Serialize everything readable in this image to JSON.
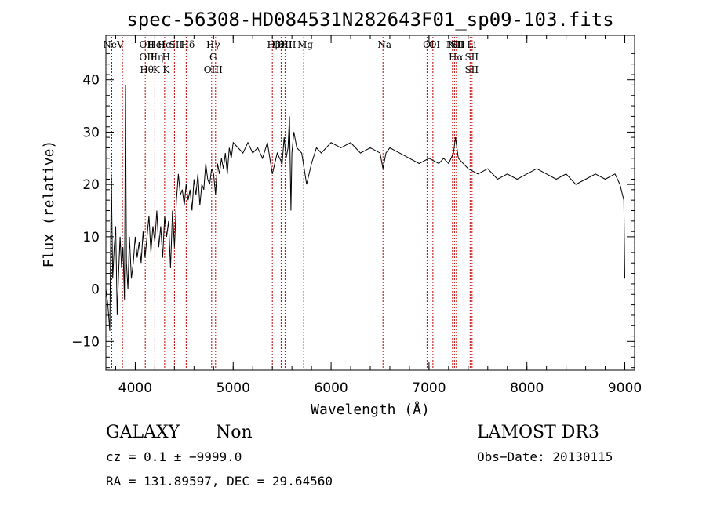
{
  "chart_data": {
    "type": "line",
    "title": "spec-56308-HD084531N282643F01_sp09-103.fits",
    "xlabel": "Wavelength (Å)",
    "ylabel": "Flux (relative)",
    "xlim": [
      3700,
      9100
    ],
    "ylim": [
      -15.5,
      48.5
    ],
    "xticks": [
      4000,
      5000,
      6000,
      7000,
      8000,
      9000
    ],
    "xtick_labels": [
      "4000",
      "5000",
      "6000",
      "7000",
      "8000",
      "9000"
    ],
    "yticks": [
      -10,
      0,
      10,
      20,
      30,
      40
    ],
    "ytick_labels": [
      "−10",
      "0",
      "10",
      "20",
      "30",
      "40"
    ],
    "grid": false,
    "series": [
      {
        "name": "flux",
        "x": [
          3700,
          3720,
          3740,
          3755,
          3770,
          3785,
          3800,
          3815,
          3830,
          3845,
          3860,
          3875,
          3890,
          3900,
          3910,
          3925,
          3940,
          3960,
          3980,
          4000,
          4020,
          4040,
          4060,
          4080,
          4100,
          4120,
          4140,
          4160,
          4180,
          4200,
          4220,
          4240,
          4260,
          4280,
          4300,
          4320,
          4340,
          4360,
          4380,
          4400,
          4420,
          4440,
          4460,
          4480,
          4500,
          4520,
          4540,
          4560,
          4580,
          4600,
          4620,
          4640,
          4660,
          4680,
          4700,
          4720,
          4740,
          4760,
          4780,
          4800,
          4820,
          4840,
          4860,
          4880,
          4900,
          4920,
          4940,
          4960,
          4980,
          5000,
          5050,
          5100,
          5150,
          5200,
          5250,
          5300,
          5350,
          5400,
          5450,
          5500,
          5520,
          5540,
          5560,
          5575,
          5590,
          5600,
          5620,
          5650,
          5700,
          5750,
          5800,
          5850,
          5900,
          5950,
          6000,
          6100,
          6200,
          6300,
          6400,
          6500,
          6530,
          6560,
          6600,
          6700,
          6800,
          6900,
          7000,
          7100,
          7150,
          7200,
          7250,
          7270,
          7300,
          7350,
          7400,
          7500,
          7600,
          7700,
          7800,
          7900,
          8000,
          8100,
          8200,
          8300,
          8400,
          8500,
          8600,
          8700,
          8800,
          8900,
          8950,
          8990,
          9000
        ],
        "values": [
          0,
          -3,
          -8,
          22,
          2,
          8,
          12,
          -5,
          3,
          10,
          4,
          8,
          -2,
          39,
          5,
          0,
          10,
          2,
          5,
          10,
          6,
          9,
          5,
          11,
          6,
          10,
          14,
          7,
          12,
          9,
          15,
          8,
          12,
          6,
          14,
          10,
          13,
          4,
          15,
          8,
          17,
          22,
          18,
          19,
          16,
          20,
          17,
          19,
          15,
          21,
          18,
          22,
          16,
          20,
          19,
          24,
          21,
          20,
          23,
          22,
          18,
          24,
          22,
          25,
          23,
          26,
          22,
          27,
          25,
          28,
          27,
          26,
          28,
          26,
          27,
          25,
          28,
          22,
          26,
          24,
          29,
          25,
          27,
          33,
          15,
          26,
          30,
          27,
          26,
          20,
          24,
          27,
          26,
          27,
          28,
          27,
          28,
          26,
          27,
          26,
          23,
          26,
          27,
          26,
          25,
          24,
          25,
          24,
          25,
          24,
          26,
          29,
          25,
          24,
          23,
          22,
          23,
          21,
          22,
          21,
          22,
          23,
          22,
          21,
          22,
          20,
          21,
          22,
          21,
          22,
          20,
          17,
          2
        ]
      }
    ],
    "line_markers": [
      {
        "wl": 3760,
        "labels": [
          "NeV"
        ],
        "side": "under"
      },
      {
        "wl": 3869,
        "labels": [],
        "side": "under"
      },
      {
        "wl": 4102,
        "labels": [
          "OII",
          "OII",
          "Hθ"
        ],
        "side": "under"
      },
      {
        "wl": 4200,
        "labels": [
          "HeI",
          "Hη",
          "K"
        ],
        "side": "under"
      },
      {
        "wl": 4300,
        "labels": [
          "HeI",
          "H",
          "K"
        ],
        "side": "under"
      },
      {
        "wl": 4400,
        "labels": [
          "SII"
        ],
        "side": "under"
      },
      {
        "wl": 4520,
        "labels": [
          "Hδ"
        ],
        "side": "under"
      },
      {
        "wl": 4780,
        "labels": [
          "Hγ",
          "G",
          "OIII"
        ],
        "side": "under"
      },
      {
        "wl": 4820,
        "labels": [],
        "side": "under"
      },
      {
        "wl": 5400,
        "labels": [
          "Hβ"
        ],
        "side": "under"
      },
      {
        "wl": 5490,
        "labels": [
          "OIII"
        ],
        "side": "under"
      },
      {
        "wl": 5530,
        "labels": [
          "OIII"
        ],
        "side": "under"
      },
      {
        "wl": 5720,
        "labels": [
          "Mg"
        ],
        "side": "under"
      },
      {
        "wl": 6530,
        "labels": [
          "Na"
        ],
        "side": "under"
      },
      {
        "wl": 6980,
        "labels": [
          "OI"
        ],
        "side": "under"
      },
      {
        "wl": 7040,
        "labels": [
          "OI"
        ],
        "side": "under"
      },
      {
        "wl": 7240,
        "labels": [
          "NII"
        ],
        "side": "under"
      },
      {
        "wl": 7260,
        "labels": [
          "NII",
          "Hα"
        ],
        "side": "under"
      },
      {
        "wl": 7280,
        "labels": [
          "SII"
        ],
        "side": "under"
      },
      {
        "wl": 7420,
        "labels": [
          "Li",
          "SII",
          "SII"
        ],
        "side": "under"
      },
      {
        "wl": 7440,
        "labels": [],
        "side": "under"
      }
    ]
  },
  "footer": {
    "class": "GALAXY",
    "subclass": "Non",
    "survey": "LAMOST DR3",
    "cz": "cz = 0.1 ± −9999.0",
    "obs_date": "Obs−Date: 20130115",
    "coords": "RA = 131.89597, DEC =  29.64560"
  }
}
